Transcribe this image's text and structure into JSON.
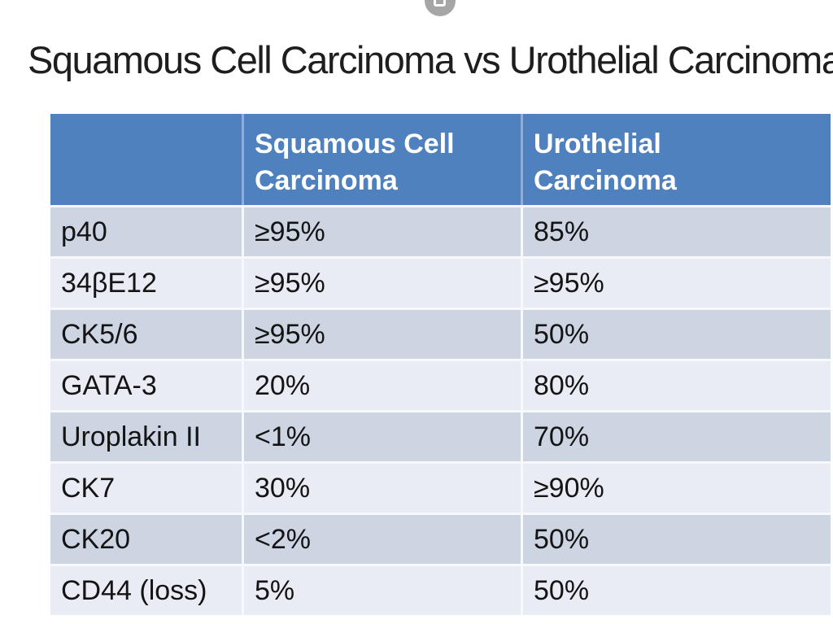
{
  "viewer": {
    "top_button_icon": "expand-frame-icon"
  },
  "slide": {
    "title": "Squamous Cell Carcinoma vs Urothelial Carcinoma",
    "table": {
      "columns": [
        {
          "line1": "",
          "line2": ""
        },
        {
          "line1": "Squamous Cell",
          "line2": "Carcinoma"
        },
        {
          "line1": "Urothelial",
          "line2": "Carcinoma"
        }
      ],
      "rows": [
        {
          "marker": "p40",
          "scc": "≥95%",
          "uc": "85%"
        },
        {
          "marker": "34βE12",
          "scc": "≥95%",
          "uc": "≥95%"
        },
        {
          "marker": "CK5/6",
          "scc": "≥95%",
          "uc": "50%"
        },
        {
          "marker": "GATA-3",
          "scc": "20%",
          "uc": "80%"
        },
        {
          "marker": "Uroplakin II",
          "scc": "<1%",
          "uc": "70%"
        },
        {
          "marker": "CK7",
          "scc": "30%",
          "uc": "≥90%"
        },
        {
          "marker": "CK20",
          "scc": "<2%",
          "uc": "50%"
        },
        {
          "marker": "CD44 (loss)",
          "scc": "5%",
          "uc": "50%"
        }
      ]
    }
  },
  "colors": {
    "header_blue": "#4e81be",
    "row_dark": "#cdd4e2",
    "row_light": "#e9ecf4",
    "divider": "#f7f8fc",
    "title_text": "#1e1e1e",
    "header_text": "#ffffff",
    "cell_text": "#141414",
    "icon_gray": "#a6a6a6"
  }
}
